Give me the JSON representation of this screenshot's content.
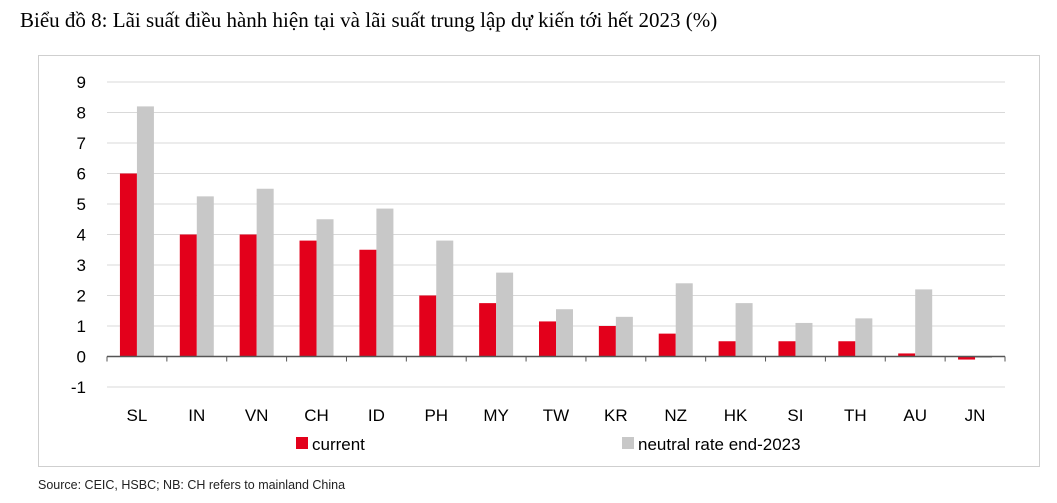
{
  "title": "Biểu đồ 8: Lãi suất điều hành hiện tại và lãi suất trung lập dự kiến tới hết 2023 (%)",
  "source": "Source: CEIC, HSBC; NB: CH refers to mainland China",
  "chart_data": {
    "type": "bar",
    "categories": [
      "SL",
      "IN",
      "VN",
      "CH",
      "ID",
      "PH",
      "MY",
      "TW",
      "KR",
      "NZ",
      "HK",
      "SI",
      "TH",
      "AU",
      "JN"
    ],
    "series": [
      {
        "name": "current",
        "color": "#e3001b",
        "values": [
          6.0,
          4.0,
          4.0,
          3.8,
          3.5,
          2.0,
          1.75,
          1.15,
          1.0,
          0.75,
          0.5,
          0.5,
          0.5,
          0.1,
          -0.1
        ]
      },
      {
        "name": "neutral rate end-2023",
        "color": "#c8c8c8",
        "values": [
          8.2,
          5.25,
          5.5,
          4.5,
          4.85,
          3.8,
          2.75,
          1.55,
          1.3,
          2.4,
          1.75,
          1.1,
          1.25,
          2.2,
          0.0
        ]
      }
    ],
    "yticks": [
      "9",
      "8",
      "7",
      "6",
      "5",
      "4",
      "3",
      "2",
      "1",
      "0",
      "-1"
    ],
    "ylim": [
      -1,
      9
    ],
    "grid": true,
    "legend": "bottom"
  }
}
